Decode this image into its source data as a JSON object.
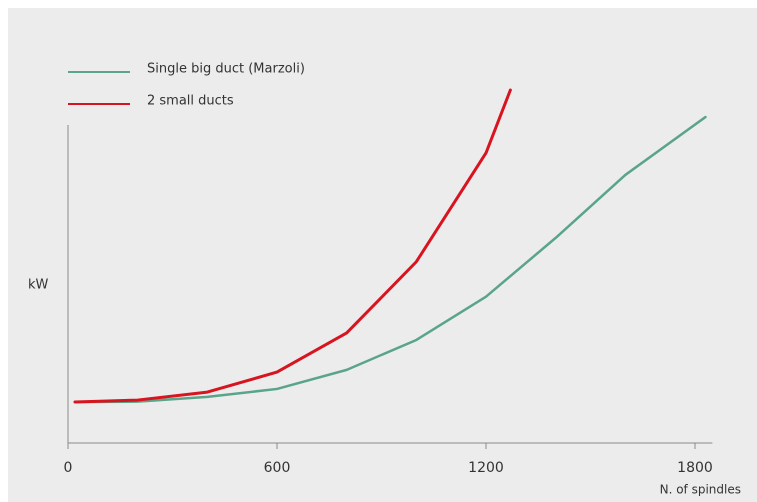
{
  "chart_data": {
    "type": "line",
    "x_label": "N. of spindles",
    "y_label": "kW",
    "xlim": [
      0,
      1850
    ],
    "xticks": [
      0,
      600,
      1200,
      1800
    ],
    "ylim": [
      0,
      120
    ],
    "grid": false,
    "legend": "top-left",
    "series": [
      {
        "name": "Single big duct (Marzoli)",
        "color": "#5aa58a",
        "x": [
          20,
          200,
          400,
          600,
          800,
          1000,
          1200,
          1400,
          1600,
          1830
        ],
        "values": [
          12.9,
          13,
          14.5,
          17,
          23,
          32.4,
          46,
          64.5,
          84.3,
          102.5
        ]
      },
      {
        "name": "2 small ducts",
        "color": "#d7141f",
        "x": [
          20,
          200,
          400,
          600,
          800,
          1000,
          1200,
          1270
        ],
        "values": [
          12.9,
          13.5,
          16,
          22.3,
          34.6,
          57,
          91.2,
          111
        ]
      }
    ]
  }
}
